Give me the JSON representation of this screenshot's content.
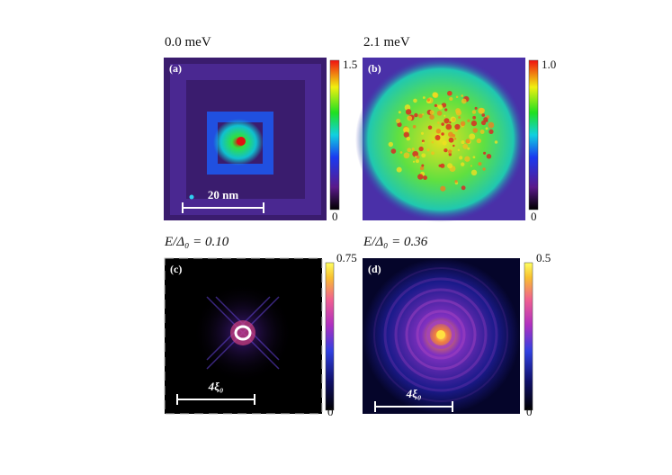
{
  "panels": [
    {
      "title": "0.0 meV",
      "label": "(a)",
      "colorbar": {
        "max": "1.5",
        "min": "0"
      },
      "scale_bar": "20 nm"
    },
    {
      "title": "2.1 meV",
      "label": "(b)",
      "colorbar": {
        "max": "1.0",
        "min": "0"
      }
    },
    {
      "title": "E/Δ₀ = 0.10",
      "label": "(c)",
      "colorbar": {
        "max": "0.75",
        "min": "0"
      },
      "scale_bar": "4ξ₀"
    },
    {
      "title": "E/Δ₀ = 0.36",
      "label": "(d)",
      "colorbar": {
        "max": "0.5",
        "min": "0"
      },
      "scale_bar": "4ξ₀"
    }
  ]
}
